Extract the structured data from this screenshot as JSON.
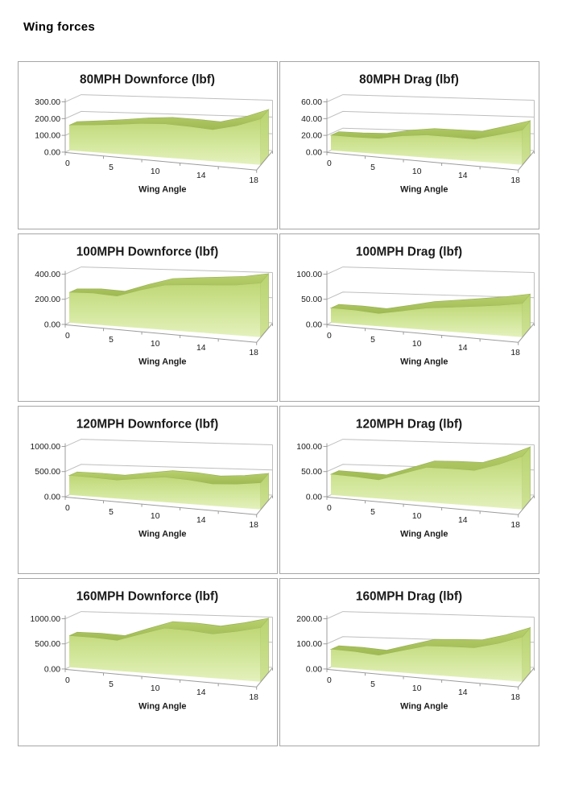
{
  "page": {
    "title": "Wing forces"
  },
  "colors": {
    "area_front_top": "#c0d776",
    "area_front_bottom": "#e4f1bd",
    "area_ridge_top": "#b9d16e",
    "area_ridge_bottom": "#9fb953",
    "area_cap_top": "#b9d470",
    "area_cap_bottom": "#cfe296",
    "ridge_edge": "#9ab255",
    "gridline": "#bebebe",
    "axis": "#9b9b9b",
    "cell_border": "#a6a6a6",
    "text": "#1a1a1a"
  },
  "chart_data": [
    {
      "type": "area",
      "title": "80MPH Downforce (lbf)",
      "xlabel": "Wing Angle",
      "x": [
        0,
        2,
        5,
        8,
        10,
        12,
        14,
        16,
        18
      ],
      "values": [
        150,
        155,
        162,
        170,
        172,
        162,
        150,
        172,
        205
      ],
      "x_tick_labels": [
        "0",
        "5",
        "10",
        "14",
        "18"
      ],
      "y_ticks": [
        "0.00",
        "100.00",
        "200.00",
        "300.00"
      ],
      "xlim": [
        0,
        18
      ],
      "ylim": [
        0,
        300
      ],
      "grid": true,
      "legend": "none",
      "style": "3d-area-green"
    },
    {
      "type": "area",
      "title": "80MPH Drag (lbf)",
      "xlabel": "Wing Angle",
      "x": [
        0,
        2,
        5,
        8,
        10,
        12,
        14,
        16,
        18
      ],
      "values": [
        18,
        17,
        17,
        21,
        23,
        22,
        21,
        26,
        31
      ],
      "x_tick_labels": [
        "0",
        "5",
        "10",
        "14",
        "18"
      ],
      "y_ticks": [
        "0.00",
        "20.00",
        "40.00",
        "60.00"
      ],
      "xlim": [
        0,
        18
      ],
      "ylim": [
        0,
        60
      ],
      "grid": true,
      "legend": "none",
      "style": "3d-area-green"
    },
    {
      "type": "area",
      "title": "100MPH Downforce (lbf)",
      "xlabel": "Wing Angle",
      "x": [
        0,
        2,
        5,
        8,
        10,
        12,
        14,
        16,
        18
      ],
      "values": [
        240,
        238,
        220,
        268,
        305,
        307,
        308,
        309,
        322
      ],
      "x_tick_labels": [
        "0",
        "5",
        "10",
        "14",
        "18"
      ],
      "y_ticks": [
        "0.00",
        "200.00",
        "400.00"
      ],
      "xlim": [
        0,
        18
      ],
      "ylim": [
        0,
        400
      ],
      "grid": true,
      "legend": "none",
      "style": "3d-area-green"
    },
    {
      "type": "area",
      "title": "100MPH Drag (lbf)",
      "xlabel": "Wing Angle",
      "x": [
        0,
        2,
        5,
        8,
        10,
        12,
        14,
        16,
        18
      ],
      "values": [
        29,
        27,
        23,
        30,
        37,
        40,
        43,
        46,
        50
      ],
      "x_tick_labels": [
        "0",
        "5",
        "10",
        "14",
        "18"
      ],
      "y_ticks": [
        "0.00",
        "50.00",
        "100.00"
      ],
      "xlim": [
        0,
        18
      ],
      "ylim": [
        0,
        100
      ],
      "grid": true,
      "legend": "none",
      "style": "3d-area-green"
    },
    {
      "type": "area",
      "title": "120MPH Downforce (lbf)",
      "xlabel": "Wing Angle",
      "x": [
        0,
        2,
        5,
        8,
        10,
        12,
        14,
        16,
        18
      ],
      "values": [
        385,
        365,
        335,
        385,
        425,
        395,
        345,
        360,
        395
      ],
      "x_tick_labels": [
        "0",
        "5",
        "10",
        "14",
        "18"
      ],
      "y_ticks": [
        "0.00",
        "500.00",
        "1000.00"
      ],
      "xlim": [
        0,
        18
      ],
      "ylim": [
        0,
        1000
      ],
      "grid": true,
      "legend": "none",
      "style": "3d-area-green"
    },
    {
      "type": "area",
      "title": "120MPH Drag (lbf)",
      "xlabel": "Wing Angle",
      "x": [
        0,
        2,
        5,
        8,
        10,
        12,
        14,
        16,
        18
      ],
      "values": [
        41,
        38,
        34,
        47,
        59,
        58,
        56,
        66,
        79
      ],
      "x_tick_labels": [
        "0",
        "5",
        "10",
        "14",
        "18"
      ],
      "y_ticks": [
        "0.00",
        "50.00",
        "100.00"
      ],
      "xlim": [
        0,
        18
      ],
      "ylim": [
        0,
        100
      ],
      "grid": true,
      "legend": "none",
      "style": "3d-area-green"
    },
    {
      "type": "area",
      "title": "160MPH Downforce (lbf)",
      "xlabel": "Wing Angle",
      "x": [
        0,
        2,
        5,
        8,
        10,
        12,
        14,
        16,
        18
      ],
      "values": [
        625,
        600,
        555,
        680,
        790,
        755,
        700,
        745,
        805
      ],
      "x_tick_labels": [
        "0",
        "5",
        "10",
        "14",
        "18"
      ],
      "y_ticks": [
        "0.00",
        "500.00",
        "1000.00"
      ],
      "xlim": [
        0,
        18
      ],
      "ylim": [
        0,
        1000
      ],
      "grid": true,
      "legend": "none",
      "style": "3d-area-green"
    },
    {
      "type": "area",
      "title": "160MPH Drag (lbf)",
      "xlabel": "Wing Angle",
      "x": [
        0,
        2,
        5,
        8,
        10,
        12,
        14,
        16,
        18
      ],
      "values": [
        71,
        66,
        57,
        78,
        97,
        97,
        96,
        112,
        133
      ],
      "x_tick_labels": [
        "0",
        "5",
        "10",
        "14",
        "18"
      ],
      "y_ticks": [
        "0.00",
        "100.00",
        "200.00"
      ],
      "xlim": [
        0,
        18
      ],
      "ylim": [
        0,
        200
      ],
      "grid": true,
      "legend": "none",
      "style": "3d-area-green"
    }
  ]
}
